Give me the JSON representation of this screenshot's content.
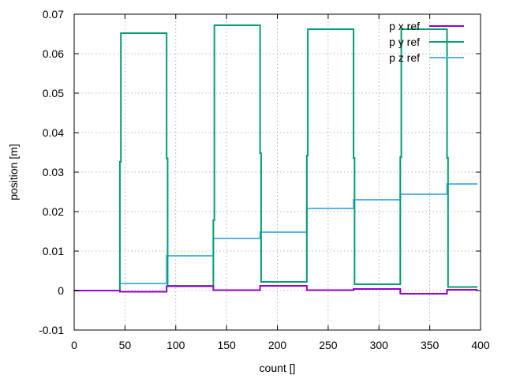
{
  "chart_data": {
    "type": "line",
    "title": "",
    "xlabel": "count []",
    "ylabel": "position [m]",
    "xlim": [
      0,
      400
    ],
    "ylim": [
      -0.01,
      0.07
    ],
    "xticks": [
      0,
      50,
      100,
      150,
      200,
      250,
      300,
      350,
      400
    ],
    "yticks": [
      -0.01,
      0,
      0.01,
      0.02,
      0.03,
      0.04,
      0.05,
      0.06,
      0.07
    ],
    "xtick_labels": [
      "0",
      "50",
      "100",
      "150",
      "200",
      "250",
      "300",
      "350",
      "400"
    ],
    "ytick_labels": [
      "-0.01",
      "0",
      "0.01",
      "0.02",
      "0.03",
      "0.04",
      "0.05",
      "0.06",
      "0.07"
    ],
    "grid": true,
    "legend_position": "top-right",
    "series": [
      {
        "name": "p x ref",
        "color": "#9400d3",
        "x": [
          0,
          45,
          45,
          91,
          91,
          137,
          137,
          183,
          183,
          229,
          229,
          275,
          275,
          321,
          321,
          367,
          367,
          397
        ],
        "y": [
          0,
          0,
          -0.0003,
          -0.0003,
          0.0011,
          0.0011,
          0.0001,
          0.0001,
          0.0012,
          0.0012,
          0.0001,
          0.0001,
          0.0004,
          0.0004,
          -0.0008,
          -0.0008,
          0.0002,
          0.0002
        ]
      },
      {
        "name": "p y ref",
        "color": "#009e73",
        "x": [
          0,
          45,
          45,
          46,
          46,
          91,
          91,
          92,
          92,
          137,
          137,
          138,
          138,
          183,
          183,
          184,
          184,
          229,
          229,
          230,
          230,
          275,
          275,
          276,
          276,
          321,
          321,
          322,
          322,
          367,
          367,
          368,
          368,
          397
        ],
        "y": [
          0,
          0,
          0.0326,
          0.0326,
          0.0652,
          0.0652,
          0.0335,
          0.0335,
          0.0012,
          0.0012,
          0.0178,
          0.0178,
          0.0672,
          0.0672,
          0.0348,
          0.0348,
          0.0022,
          0.0022,
          0.0342,
          0.0342,
          0.0662,
          0.0662,
          0.0336,
          0.0336,
          0.0016,
          0.0016,
          0.0338,
          0.0338,
          0.0662,
          0.0662,
          0.0336,
          0.0336,
          0.0009,
          0.0009
        ]
      },
      {
        "name": "p z ref",
        "color": "#56b4e9",
        "x": [
          0,
          45,
          45,
          91,
          91,
          137,
          137,
          183,
          183,
          229,
          229,
          275,
          275,
          321,
          321,
          367,
          367,
          397
        ],
        "y": [
          0,
          0,
          0.0018,
          0.0018,
          0.0088,
          0.0088,
          0.0132,
          0.0132,
          0.0148,
          0.0148,
          0.0208,
          0.0208,
          0.023,
          0.023,
          0.0244,
          0.0244,
          0.027,
          0.027
        ]
      }
    ]
  }
}
